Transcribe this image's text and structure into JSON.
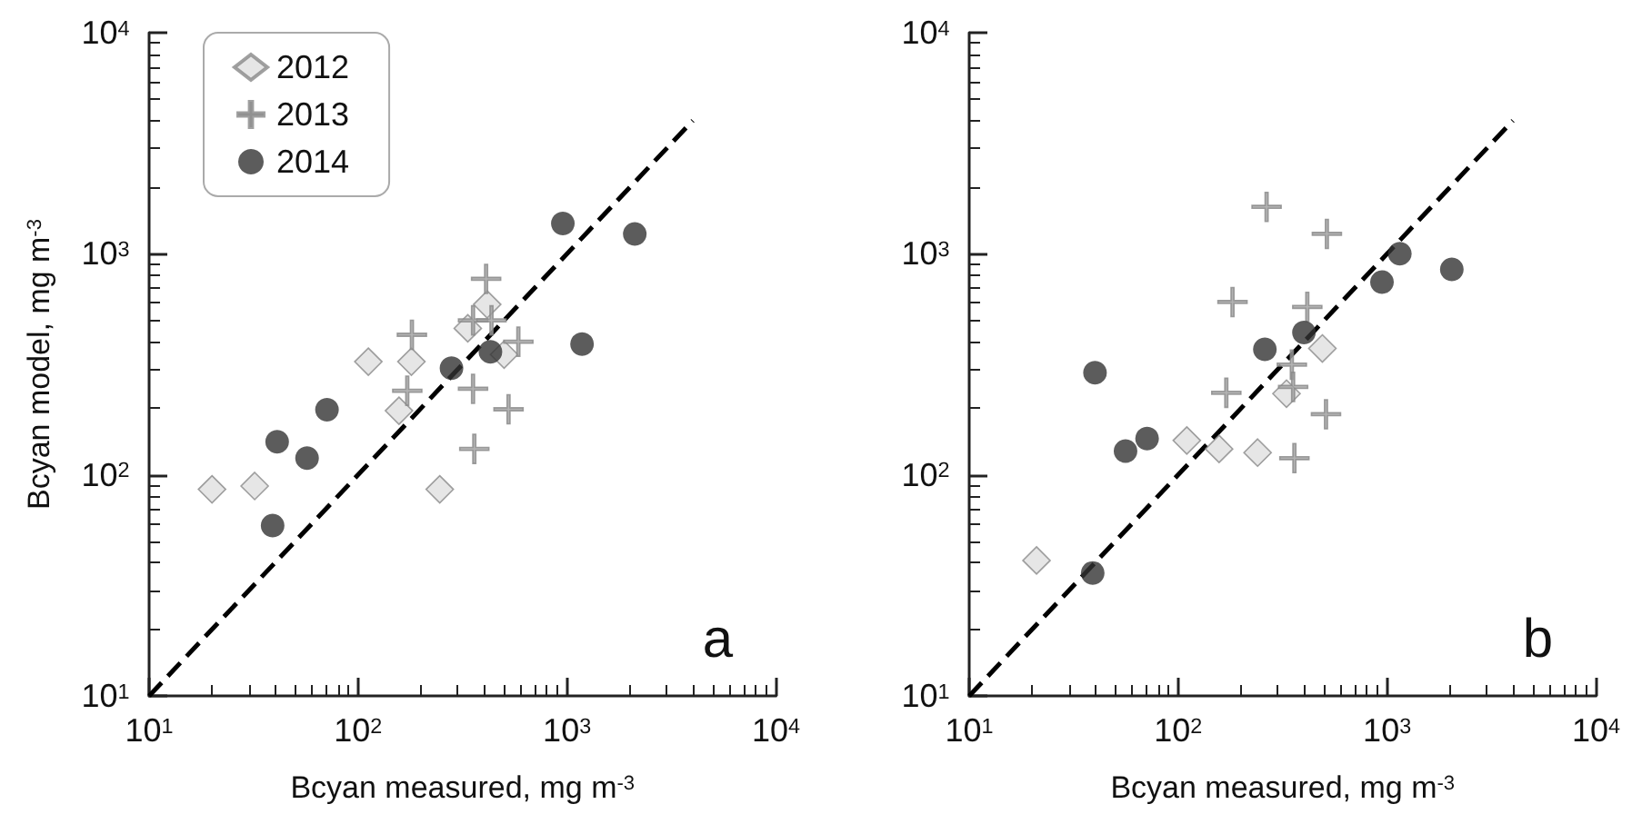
{
  "chart_data": [
    {
      "type": "scatter",
      "xlabel": "Bcyan measured, mg m$^{-3}$",
      "ylabel": "Bcyan model, mg m$^{-3}$",
      "log": "xy",
      "grid": false,
      "legend": "top left",
      "annotations": [
        "a"
      ],
      "xlim": [
        10,
        10000
      ],
      "ylim": [
        10,
        10000
      ],
      "xticks": [
        {
          "value": 10,
          "label": "10$^{1}$"
        },
        {
          "value": 100,
          "label": "10$^{2}$"
        },
        {
          "value": 1000,
          "label": "10$^{3}$"
        },
        {
          "value": 10000,
          "label": "10$^{4}$"
        }
      ],
      "yticks": [
        {
          "value": 10,
          "label": "10$^{1}$"
        },
        {
          "value": 100,
          "label": "10$^{2}$"
        },
        {
          "value": 1000,
          "label": "10$^{3}$"
        },
        {
          "value": 10000,
          "label": "10$^{4}$"
        }
      ],
      "series": [
        {
          "name": "2012",
          "color": "#e0e0e0",
          "marker": "diamond",
          "x": [
            20,
            32,
            112,
            180,
            157,
            246,
            335,
            415,
            500
          ],
          "values": [
            86,
            89,
            325,
            325,
            195,
            86,
            460,
            590,
            350
          ]
        },
        {
          "name": "2013",
          "color": "#a0a0a0",
          "marker": "cross",
          "x": [
            181,
            172,
            410,
            355,
            435,
            585,
            355,
            525,
            360
          ],
          "values": [
            430,
            240,
            770,
            500,
            500,
            400,
            245,
            198,
            131
          ]
        },
        {
          "name": "2014",
          "color": "#333333",
          "marker": "circle",
          "x": [
            41,
            57,
            39,
            71,
            280,
            430,
            955,
            2110,
            1180
          ],
          "values": [
            141,
            119,
            59,
            197,
            304,
            360,
            1370,
            1230,
            390
          ]
        },
        {
          "type": "line",
          "color": "#000000",
          "line_style": "dashed",
          "marker": "none",
          "x": [
            10,
            4000
          ],
          "values": [
            10,
            4000
          ]
        }
      ]
    },
    {
      "type": "scatter",
      "xlabel": "Bcyan measured, mg m$^{-3}$",
      "log": "xy",
      "grid": false,
      "legend": false,
      "annotations": [
        "b"
      ],
      "xlim": [
        10,
        10000
      ],
      "ylim": [
        10,
        10000
      ],
      "xticks": [
        {
          "value": 10,
          "label": "10$^{1}$"
        },
        {
          "value": 100,
          "label": "10$^{2}$"
        },
        {
          "value": 1000,
          "label": "10$^{3}$"
        },
        {
          "value": 10000,
          "label": "10$^{4}$"
        }
      ],
      "yticks": [
        {
          "value": 10,
          "label": "10$^{1}$"
        },
        {
          "value": 100,
          "label": "10$^{2}$"
        },
        {
          "value": 1000,
          "label": "10$^{3}$"
        },
        {
          "value": 10000,
          "label": "10$^{4}$"
        }
      ],
      "series": [
        {
          "color": "#e0e0e0",
          "marker": "diamond",
          "x": [
            21,
            110,
            157,
            240,
            330,
            490
          ],
          "values": [
            41,
            143,
            131,
            126,
            233,
            373
          ]
        },
        {
          "color": "#a0a0a0",
          "marker": "cross",
          "x": [
            265,
            515,
            182,
            415,
            350,
            355,
            170,
            510,
            360
          ],
          "values": [
            1630,
            1230,
            605,
            575,
            315,
            250,
            235,
            188,
            119
          ]
        },
        {
          "color": "#333333",
          "marker": "circle",
          "x": [
            40,
            56,
            71,
            39,
            260,
            400,
            945,
            1150,
            2040
          ],
          "values": [
            290,
            128,
            146,
            36,
            370,
            440,
            745,
            1000,
            850
          ]
        },
        {
          "type": "line",
          "color": "#000000",
          "line_style": "dashed",
          "marker": "none",
          "x": [
            10,
            4000
          ],
          "values": [
            10,
            4000
          ]
        }
      ]
    }
  ]
}
